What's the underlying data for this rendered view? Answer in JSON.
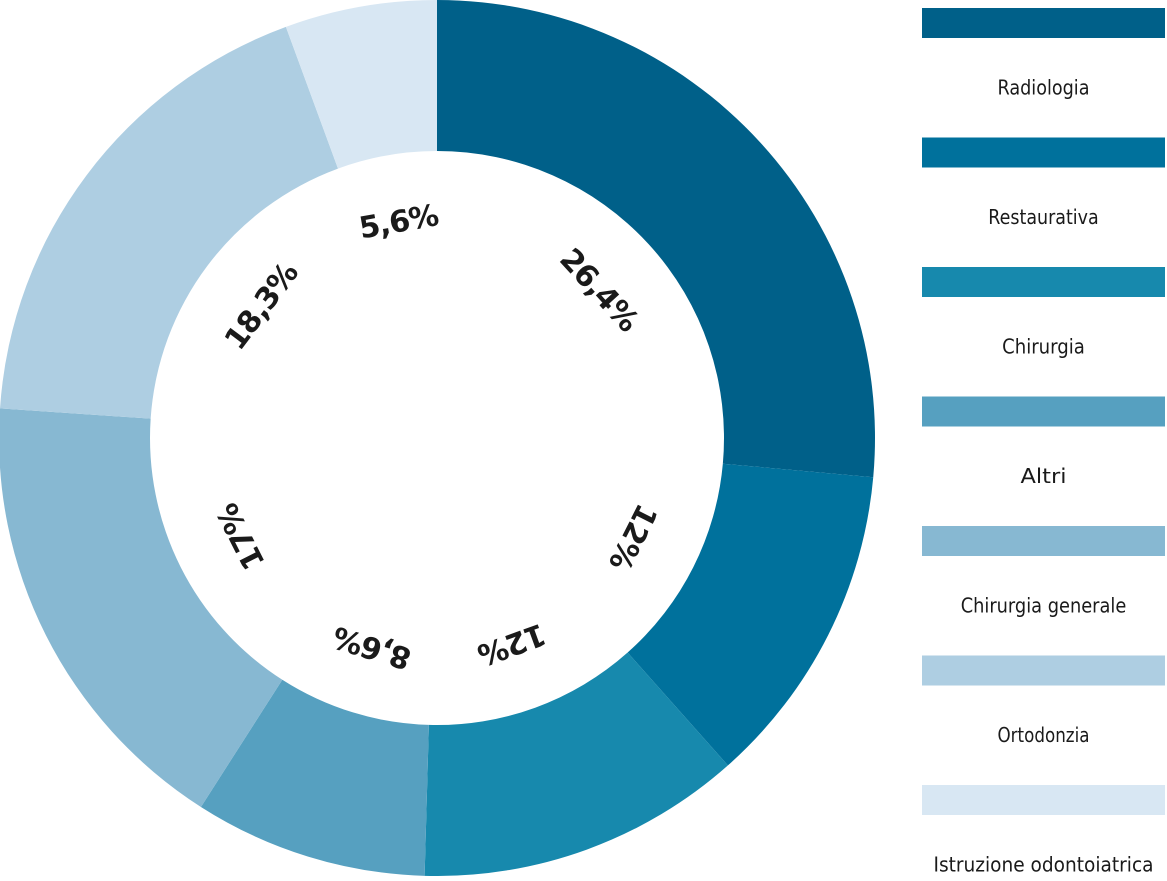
{
  "chart_data": {
    "type": "pie",
    "style": "donut",
    "title": "",
    "value_format": "comma-decimal percent",
    "categories": [
      "Radiologia",
      "Restaurativa",
      "Chirurgia",
      "Altri",
      "Chirurgia generale",
      "Ortodonzia",
      "Istruzione odontoiatrica"
    ],
    "values": [
      26.4,
      12,
      12,
      8.6,
      17,
      18.3,
      5.6
    ],
    "labels": [
      "26,4%",
      "12%",
      "12%",
      "8,6%",
      "17%",
      "18,3%",
      "5,6%"
    ],
    "colors": [
      "#006089",
      "#00719c",
      "#1789ad",
      "#56a0c0",
      "#87b8d2",
      "#aecee2",
      "#d8e7f3"
    ],
    "legend": {
      "placement": "right",
      "entries": [
        "Radiologia",
        "Restaurativa",
        "Chirurgia",
        "Altri",
        "Chirurgia generale",
        "Ortodonzia",
        "Istruzione odontoiatrica"
      ]
    }
  }
}
